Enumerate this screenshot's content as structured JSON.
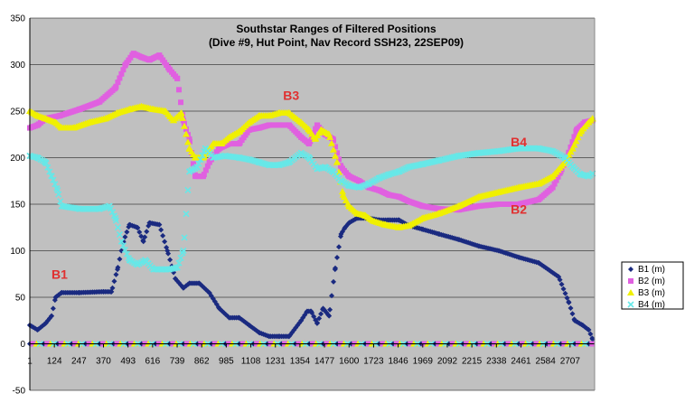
{
  "chart_data": {
    "type": "scatter",
    "title": "Southstar Ranges of Filtered Positions",
    "subtitle": "(Dive #9, Hut Point, Nav Record SSH23, 22SEP09)",
    "xlabel": "",
    "ylabel": "",
    "xlim": [
      1,
      2830
    ],
    "ylim": [
      -50,
      350
    ],
    "y_ticks": [
      "-50",
      "0",
      "50",
      "100",
      "150",
      "200",
      "250",
      "300",
      "350"
    ],
    "x_ticks": [
      "1",
      "124",
      "247",
      "370",
      "493",
      "616",
      "739",
      "862",
      "985",
      "1108",
      "1231",
      "1354",
      "1477",
      "1600",
      "1723",
      "1846",
      "1969",
      "2092",
      "2215",
      "2338",
      "2461",
      "2584",
      "2707"
    ],
    "grid": "horizontal",
    "background_color": "#c0c0c0",
    "legend_position": "right",
    "annotations": [
      {
        "text": "B1",
        "x": 150,
        "y": 70,
        "color": "#e03030"
      },
      {
        "text": "B3",
        "x": 1310,
        "y": 262,
        "color": "#e03030"
      },
      {
        "text": "B4",
        "x": 2450,
        "y": 212,
        "color": "#e03030"
      },
      {
        "text": "B2",
        "x": 2450,
        "y": 140,
        "color": "#e03030"
      }
    ],
    "series": [
      {
        "name": "B1 (m)",
        "color": "#1a2a80",
        "marker": "diamond",
        "points": [
          [
            1,
            20
          ],
          [
            40,
            15
          ],
          [
            80,
            22
          ],
          [
            110,
            30
          ],
          [
            130,
            50
          ],
          [
            160,
            55
          ],
          [
            250,
            55
          ],
          [
            370,
            56
          ],
          [
            410,
            56
          ],
          [
            440,
            80
          ],
          [
            470,
            110
          ],
          [
            500,
            128
          ],
          [
            540,
            125
          ],
          [
            570,
            110
          ],
          [
            600,
            130
          ],
          [
            650,
            128
          ],
          [
            690,
            100
          ],
          [
            730,
            70
          ],
          [
            770,
            60
          ],
          [
            800,
            65
          ],
          [
            850,
            65
          ],
          [
            900,
            55
          ],
          [
            950,
            38
          ],
          [
            1000,
            28
          ],
          [
            1050,
            28
          ],
          [
            1100,
            20
          ],
          [
            1150,
            12
          ],
          [
            1200,
            8
          ],
          [
            1250,
            8
          ],
          [
            1300,
            8
          ],
          [
            1360,
            25
          ],
          [
            1390,
            35
          ],
          [
            1410,
            35
          ],
          [
            1440,
            22
          ],
          [
            1470,
            38
          ],
          [
            1500,
            30
          ],
          [
            1530,
            80
          ],
          [
            1560,
            118
          ],
          [
            1580,
            125
          ],
          [
            1600,
            130
          ],
          [
            1640,
            135
          ],
          [
            1700,
            135
          ],
          [
            1750,
            133
          ],
          [
            1800,
            133
          ],
          [
            1850,
            133
          ],
          [
            1900,
            127
          ],
          [
            1969,
            123
          ],
          [
            2050,
            118
          ],
          [
            2150,
            112
          ],
          [
            2250,
            105
          ],
          [
            2350,
            100
          ],
          [
            2450,
            93
          ],
          [
            2550,
            87
          ],
          [
            2650,
            72
          ],
          [
            2700,
            45
          ],
          [
            2730,
            25
          ],
          [
            2770,
            20
          ],
          [
            2800,
            15
          ],
          [
            2820,
            5
          ]
        ]
      },
      {
        "name": "B2 (m)",
        "color": "#e060e0",
        "marker": "square",
        "points": [
          [
            1,
            232
          ],
          [
            40,
            235
          ],
          [
            80,
            242
          ],
          [
            150,
            245
          ],
          [
            250,
            252
          ],
          [
            350,
            260
          ],
          [
            430,
            275
          ],
          [
            480,
            300
          ],
          [
            520,
            312
          ],
          [
            560,
            308
          ],
          [
            600,
            305
          ],
          [
            650,
            310
          ],
          [
            700,
            295
          ],
          [
            740,
            285
          ],
          [
            770,
            240
          ],
          [
            800,
            220
          ],
          [
            830,
            180
          ],
          [
            870,
            180
          ],
          [
            900,
            195
          ],
          [
            950,
            210
          ],
          [
            1000,
            215
          ],
          [
            1050,
            215
          ],
          [
            1100,
            230
          ],
          [
            1150,
            232
          ],
          [
            1200,
            235
          ],
          [
            1250,
            235
          ],
          [
            1300,
            235
          ],
          [
            1360,
            222
          ],
          [
            1400,
            215
          ],
          [
            1440,
            235
          ],
          [
            1480,
            225
          ],
          [
            1520,
            220
          ],
          [
            1560,
            190
          ],
          [
            1600,
            180
          ],
          [
            1650,
            175
          ],
          [
            1700,
            168
          ],
          [
            1750,
            165
          ],
          [
            1800,
            160
          ],
          [
            1850,
            158
          ],
          [
            1900,
            153
          ],
          [
            1969,
            148
          ],
          [
            2050,
            145
          ],
          [
            2150,
            144
          ],
          [
            2250,
            148
          ],
          [
            2350,
            150
          ],
          [
            2450,
            150
          ],
          [
            2550,
            155
          ],
          [
            2620,
            168
          ],
          [
            2660,
            185
          ],
          [
            2700,
            205
          ],
          [
            2740,
            230
          ],
          [
            2780,
            238
          ],
          [
            2820,
            240
          ]
        ]
      },
      {
        "name": "B3 (m)",
        "color": "#f0f000",
        "marker": "triangle",
        "points": [
          [
            1,
            250
          ],
          [
            40,
            245
          ],
          [
            80,
            242
          ],
          [
            130,
            238
          ],
          [
            160,
            232
          ],
          [
            220,
            232
          ],
          [
            300,
            238
          ],
          [
            380,
            242
          ],
          [
            440,
            248
          ],
          [
            500,
            252
          ],
          [
            560,
            255
          ],
          [
            620,
            252
          ],
          [
            680,
            250
          ],
          [
            720,
            240
          ],
          [
            760,
            248
          ],
          [
            800,
            210
          ],
          [
            830,
            200
          ],
          [
            870,
            200
          ],
          [
            920,
            215
          ],
          [
            960,
            215
          ],
          [
            1000,
            222
          ],
          [
            1050,
            228
          ],
          [
            1100,
            238
          ],
          [
            1150,
            245
          ],
          [
            1200,
            245
          ],
          [
            1250,
            248
          ],
          [
            1300,
            248
          ],
          [
            1360,
            238
          ],
          [
            1400,
            230
          ],
          [
            1430,
            220
          ],
          [
            1460,
            230
          ],
          [
            1500,
            225
          ],
          [
            1540,
            195
          ],
          [
            1570,
            160
          ],
          [
            1600,
            148
          ],
          [
            1640,
            140
          ],
          [
            1680,
            138
          ],
          [
            1720,
            132
          ],
          [
            1780,
            128
          ],
          [
            1850,
            125
          ],
          [
            1900,
            127
          ],
          [
            1969,
            135
          ],
          [
            2050,
            140
          ],
          [
            2150,
            148
          ],
          [
            2250,
            158
          ],
          [
            2350,
            163
          ],
          [
            2450,
            168
          ],
          [
            2550,
            172
          ],
          [
            2620,
            180
          ],
          [
            2680,
            195
          ],
          [
            2720,
            210
          ],
          [
            2760,
            228
          ],
          [
            2800,
            238
          ],
          [
            2820,
            242
          ]
        ]
      },
      {
        "name": "B4 (m)",
        "color": "#66e8e8",
        "marker": "x",
        "points": [
          [
            1,
            202
          ],
          [
            40,
            200
          ],
          [
            80,
            195
          ],
          [
            110,
            180
          ],
          [
            140,
            165
          ],
          [
            160,
            148
          ],
          [
            250,
            145
          ],
          [
            350,
            145
          ],
          [
            400,
            148
          ],
          [
            430,
            135
          ],
          [
            460,
            110
          ],
          [
            500,
            90
          ],
          [
            540,
            85
          ],
          [
            580,
            90
          ],
          [
            620,
            80
          ],
          [
            660,
            80
          ],
          [
            700,
            80
          ],
          [
            740,
            82
          ],
          [
            770,
            100
          ],
          [
            800,
            185
          ],
          [
            840,
            190
          ],
          [
            880,
            210
          ],
          [
            920,
            200
          ],
          [
            980,
            202
          ],
          [
            1050,
            200
          ],
          [
            1100,
            198
          ],
          [
            1150,
            195
          ],
          [
            1200,
            192
          ],
          [
            1250,
            192
          ],
          [
            1300,
            195
          ],
          [
            1360,
            205
          ],
          [
            1400,
            200
          ],
          [
            1440,
            188
          ],
          [
            1480,
            190
          ],
          [
            1520,
            185
          ],
          [
            1560,
            175
          ],
          [
            1600,
            170
          ],
          [
            1650,
            168
          ],
          [
            1700,
            172
          ],
          [
            1750,
            178
          ],
          [
            1800,
            182
          ],
          [
            1850,
            185
          ],
          [
            1900,
            190
          ],
          [
            1969,
            193
          ],
          [
            2050,
            197
          ],
          [
            2150,
            202
          ],
          [
            2250,
            205
          ],
          [
            2350,
            207
          ],
          [
            2450,
            210
          ],
          [
            2550,
            210
          ],
          [
            2620,
            207
          ],
          [
            2680,
            200
          ],
          [
            2720,
            190
          ],
          [
            2760,
            182
          ],
          [
            2800,
            180
          ],
          [
            2820,
            183
          ]
        ]
      }
    ]
  }
}
